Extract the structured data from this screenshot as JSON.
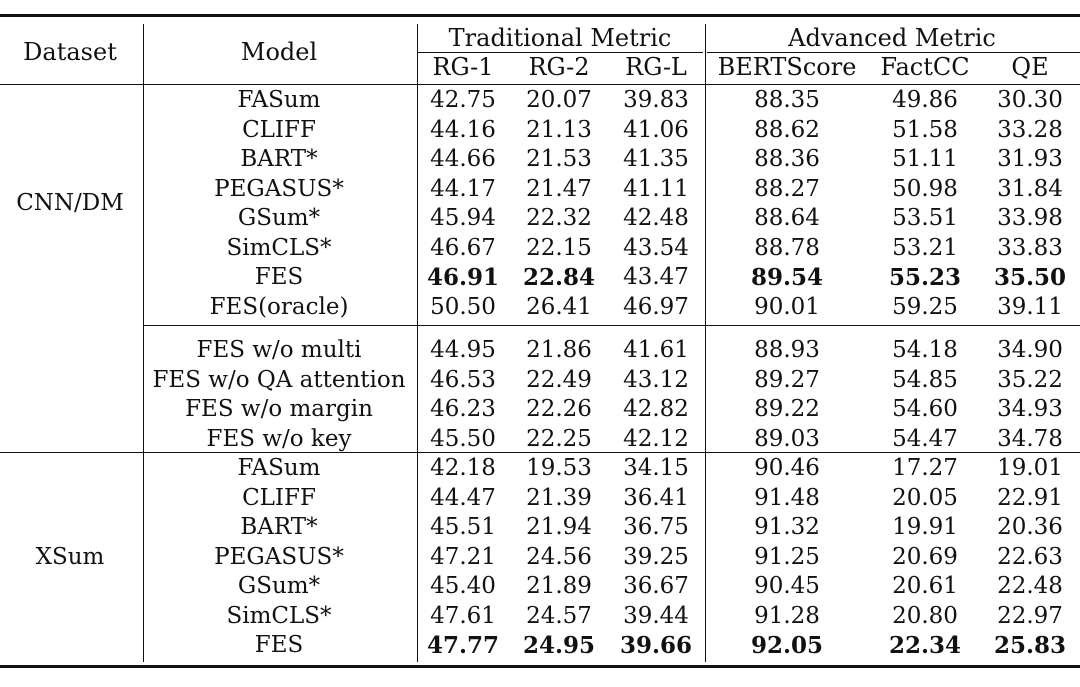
{
  "header": {
    "dataset": "Dataset",
    "model": "Model",
    "traditional_group": "Traditional Metric",
    "advanced_group": "Advanced Metric",
    "columns": [
      "RG-1",
      "RG-2",
      "RG-L",
      "BERTScore",
      "FactCC",
      "QE"
    ]
  },
  "groups": [
    {
      "dataset": "CNN/DM",
      "sections": [
        {
          "rows": [
            {
              "model": "FASum",
              "values": [
                "42.75",
                "20.07",
                "39.83",
                "88.35",
                "49.86",
                "30.30"
              ],
              "bold": [
                false,
                false,
                false,
                false,
                false,
                false
              ]
            },
            {
              "model": "CLIFF",
              "values": [
                "44.16",
                "21.13",
                "41.06",
                "88.62",
                "51.58",
                "33.28"
              ],
              "bold": [
                false,
                false,
                false,
                false,
                false,
                false
              ]
            },
            {
              "model": "BART*",
              "values": [
                "44.66",
                "21.53",
                "41.35",
                "88.36",
                "51.11",
                "31.93"
              ],
              "bold": [
                false,
                false,
                false,
                false,
                false,
                false
              ]
            },
            {
              "model": "PEGASUS*",
              "values": [
                "44.17",
                "21.47",
                "41.11",
                "88.27",
                "50.98",
                "31.84"
              ],
              "bold": [
                false,
                false,
                false,
                false,
                false,
                false
              ]
            },
            {
              "model": "GSum*",
              "values": [
                "45.94",
                "22.32",
                "42.48",
                "88.64",
                "53.51",
                "33.98"
              ],
              "bold": [
                false,
                false,
                false,
                false,
                false,
                false
              ]
            },
            {
              "model": "SimCLS*",
              "values": [
                "46.67",
                "22.15",
                "43.54",
                "88.78",
                "53.21",
                "33.83"
              ],
              "bold": [
                false,
                false,
                false,
                false,
                false,
                false
              ]
            },
            {
              "model": "FES",
              "values": [
                "46.91",
                "22.84",
                "43.47",
                "89.54",
                "55.23",
                "35.50"
              ],
              "bold": [
                true,
                true,
                false,
                true,
                true,
                true
              ]
            },
            {
              "model": "FES(oracle)",
              "values": [
                "50.50",
                "26.41",
                "46.97",
                "90.01",
                "59.25",
                "39.11"
              ],
              "bold": [
                false,
                false,
                false,
                false,
                false,
                false
              ]
            }
          ]
        },
        {
          "rows": [
            {
              "model": "FES w/o multi",
              "values": [
                "44.95",
                "21.86",
                "41.61",
                "88.93",
                "54.18",
                "34.90"
              ],
              "bold": [
                false,
                false,
                false,
                false,
                false,
                false
              ]
            },
            {
              "model": "FES w/o QA attention",
              "values": [
                "46.53",
                "22.49",
                "43.12",
                "89.27",
                "54.85",
                "35.22"
              ],
              "bold": [
                false,
                false,
                false,
                false,
                false,
                false
              ]
            },
            {
              "model": "FES w/o margin",
              "values": [
                "46.23",
                "22.26",
                "42.82",
                "89.22",
                "54.60",
                "34.93"
              ],
              "bold": [
                false,
                false,
                false,
                false,
                false,
                false
              ]
            },
            {
              "model": "FES w/o key",
              "values": [
                "45.50",
                "22.25",
                "42.12",
                "89.03",
                "54.47",
                "34.78"
              ],
              "bold": [
                false,
                false,
                false,
                false,
                false,
                false
              ]
            }
          ]
        }
      ]
    },
    {
      "dataset": "XSum",
      "sections": [
        {
          "rows": [
            {
              "model": "FASum",
              "values": [
                "42.18",
                "19.53",
                "34.15",
                "90.46",
                "17.27",
                "19.01"
              ],
              "bold": [
                false,
                false,
                false,
                false,
                false,
                false
              ]
            },
            {
              "model": "CLIFF",
              "values": [
                "44.47",
                "21.39",
                "36.41",
                "91.48",
                "20.05",
                "22.91"
              ],
              "bold": [
                false,
                false,
                false,
                false,
                false,
                false
              ]
            },
            {
              "model": "BART*",
              "values": [
                "45.51",
                "21.94",
                "36.75",
                "91.32",
                "19.91",
                "20.36"
              ],
              "bold": [
                false,
                false,
                false,
                false,
                false,
                false
              ]
            },
            {
              "model": "PEGASUS*",
              "values": [
                "47.21",
                "24.56",
                "39.25",
                "91.25",
                "20.69",
                "22.63"
              ],
              "bold": [
                false,
                false,
                false,
                false,
                false,
                false
              ]
            },
            {
              "model": "GSum*",
              "values": [
                "45.40",
                "21.89",
                "36.67",
                "90.45",
                "20.61",
                "22.48"
              ],
              "bold": [
                false,
                false,
                false,
                false,
                false,
                false
              ]
            },
            {
              "model": "SimCLS*",
              "values": [
                "47.61",
                "24.57",
                "39.44",
                "91.28",
                "20.80",
                "22.97"
              ],
              "bold": [
                false,
                false,
                false,
                false,
                false,
                false
              ]
            },
            {
              "model": "FES",
              "values": [
                "47.77",
                "24.95",
                "39.66",
                "92.05",
                "22.34",
                "25.83"
              ],
              "bold": [
                true,
                true,
                true,
                true,
                true,
                true
              ]
            }
          ]
        }
      ]
    }
  ]
}
